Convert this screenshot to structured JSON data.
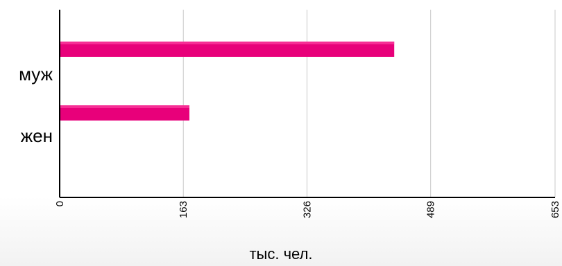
{
  "chart_data": {
    "type": "bar",
    "orientation": "horizontal",
    "categories": [
      "муж",
      "жен"
    ],
    "values": [
      441,
      171
    ],
    "xlabel": "тыс. чел.",
    "ylabel": "",
    "xlim": [
      0,
      653
    ],
    "x_ticks": [
      "0",
      "163",
      "326",
      "489",
      "653"
    ],
    "tick_label_rotation": "vertical",
    "grid": "vertical",
    "legend": "none",
    "bar_color": "#e8007a",
    "axis_color": "#000000",
    "grid_color": "#c8c8c8"
  }
}
